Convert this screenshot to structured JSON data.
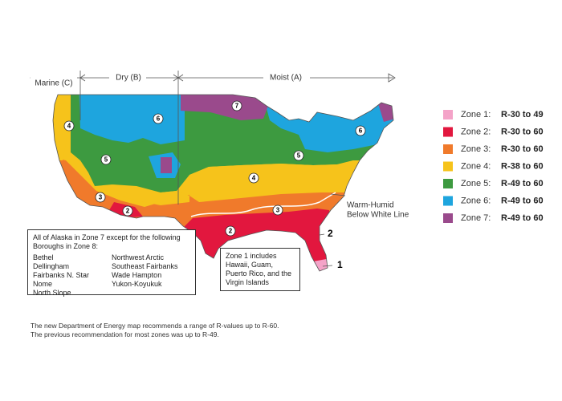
{
  "climate_arrows": [
    "Marine (C)",
    "Dry (B)",
    "Moist (A)"
  ],
  "map_labels": [
    "7",
    "6",
    "6",
    "4",
    "5",
    "5",
    "4",
    "3",
    "3",
    "2",
    "2"
  ],
  "outside_labels": [
    "2",
    "1"
  ],
  "warm_humid_label": [
    "Warm-Humid",
    "Below White Line"
  ],
  "alaska_note": {
    "heading": "All of Alaska in Zone 7 except for the following Boroughs in Zone 8:",
    "boroughs_left": [
      "Bethel",
      "Dellingham",
      "Fairbanks N. Star",
      "Nome",
      "North Slope"
    ],
    "boroughs_right": [
      "Northwest Arctic",
      "Southeast Fairbanks",
      "Wade Hampton",
      "Yukon-Koyukuk"
    ]
  },
  "zone1_note": "Zone 1 includes Hawaii, Guam, Puerto Rico, and the Virgin Islands",
  "legend": [
    {
      "zone": "Zone 1:",
      "r_value": "R-30 to 49",
      "color": "#f4a3c8"
    },
    {
      "zone": "Zone 2:",
      "r_value": "R-30 to 60",
      "color": "#e2173e"
    },
    {
      "zone": "Zone 3:",
      "r_value": "R-30 to 60",
      "color": "#f07a2b"
    },
    {
      "zone": "Zone 4:",
      "r_value": "R-38 to 60",
      "color": "#f6c31b"
    },
    {
      "zone": "Zone 5:",
      "r_value": "R-49 to 60",
      "color": "#3d9a40"
    },
    {
      "zone": "Zone 6:",
      "r_value": "R-49 to 60",
      "color": "#1ea5de"
    },
    {
      "zone": "Zone 7:",
      "r_value": "R-49 to 60",
      "color": "#9a4a8c"
    }
  ],
  "footnote": [
    "The new Department of Energy map recommends a range of R-values up to R-60.",
    "The previous recommendation for most zones was up to R-49."
  ]
}
